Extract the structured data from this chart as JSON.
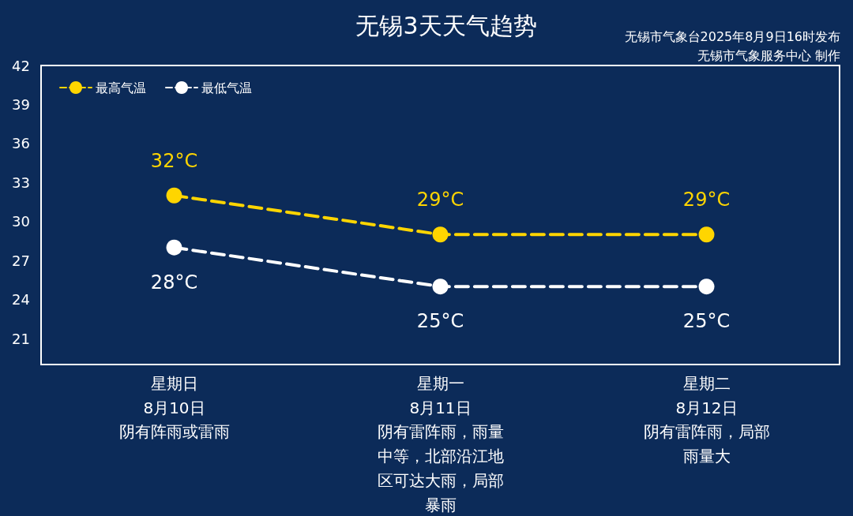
{
  "chart_data": {
    "type": "line",
    "title": "无锡3天天气趋势",
    "annotations": [
      "无锡市气象台2025年8月9日16时发布",
      "无锡市气象服务中心 制作",
      "阴有阵雨或雷雨",
      "阴有雷阵雨，雨量中等，北部沿江地区可达大雨，局部暴雨",
      "阴有雷阵雨，局部雨量大"
    ],
    "categories": [
      "星期日\n8月10日",
      "星期一\n8月11日",
      "星期二\n8月12日"
    ],
    "series": [
      {
        "name": "最高气温",
        "color": "#ffd500",
        "values": [
          32,
          29,
          29
        ],
        "value_labels": [
          "32°C",
          "29°C",
          "29°C"
        ]
      },
      {
        "name": "最低气温",
        "color": "#ffffff",
        "values": [
          28,
          25,
          25
        ],
        "value_labels": [
          "28°C",
          "25°C",
          "25°C"
        ]
      }
    ],
    "ylim": [
      19,
      42
    ],
    "yticks": [
      21,
      24,
      27,
      30,
      33,
      36,
      39,
      42
    ],
    "grid": false,
    "legend": "top left",
    "marker": "circle",
    "line_style": "dashed"
  }
}
